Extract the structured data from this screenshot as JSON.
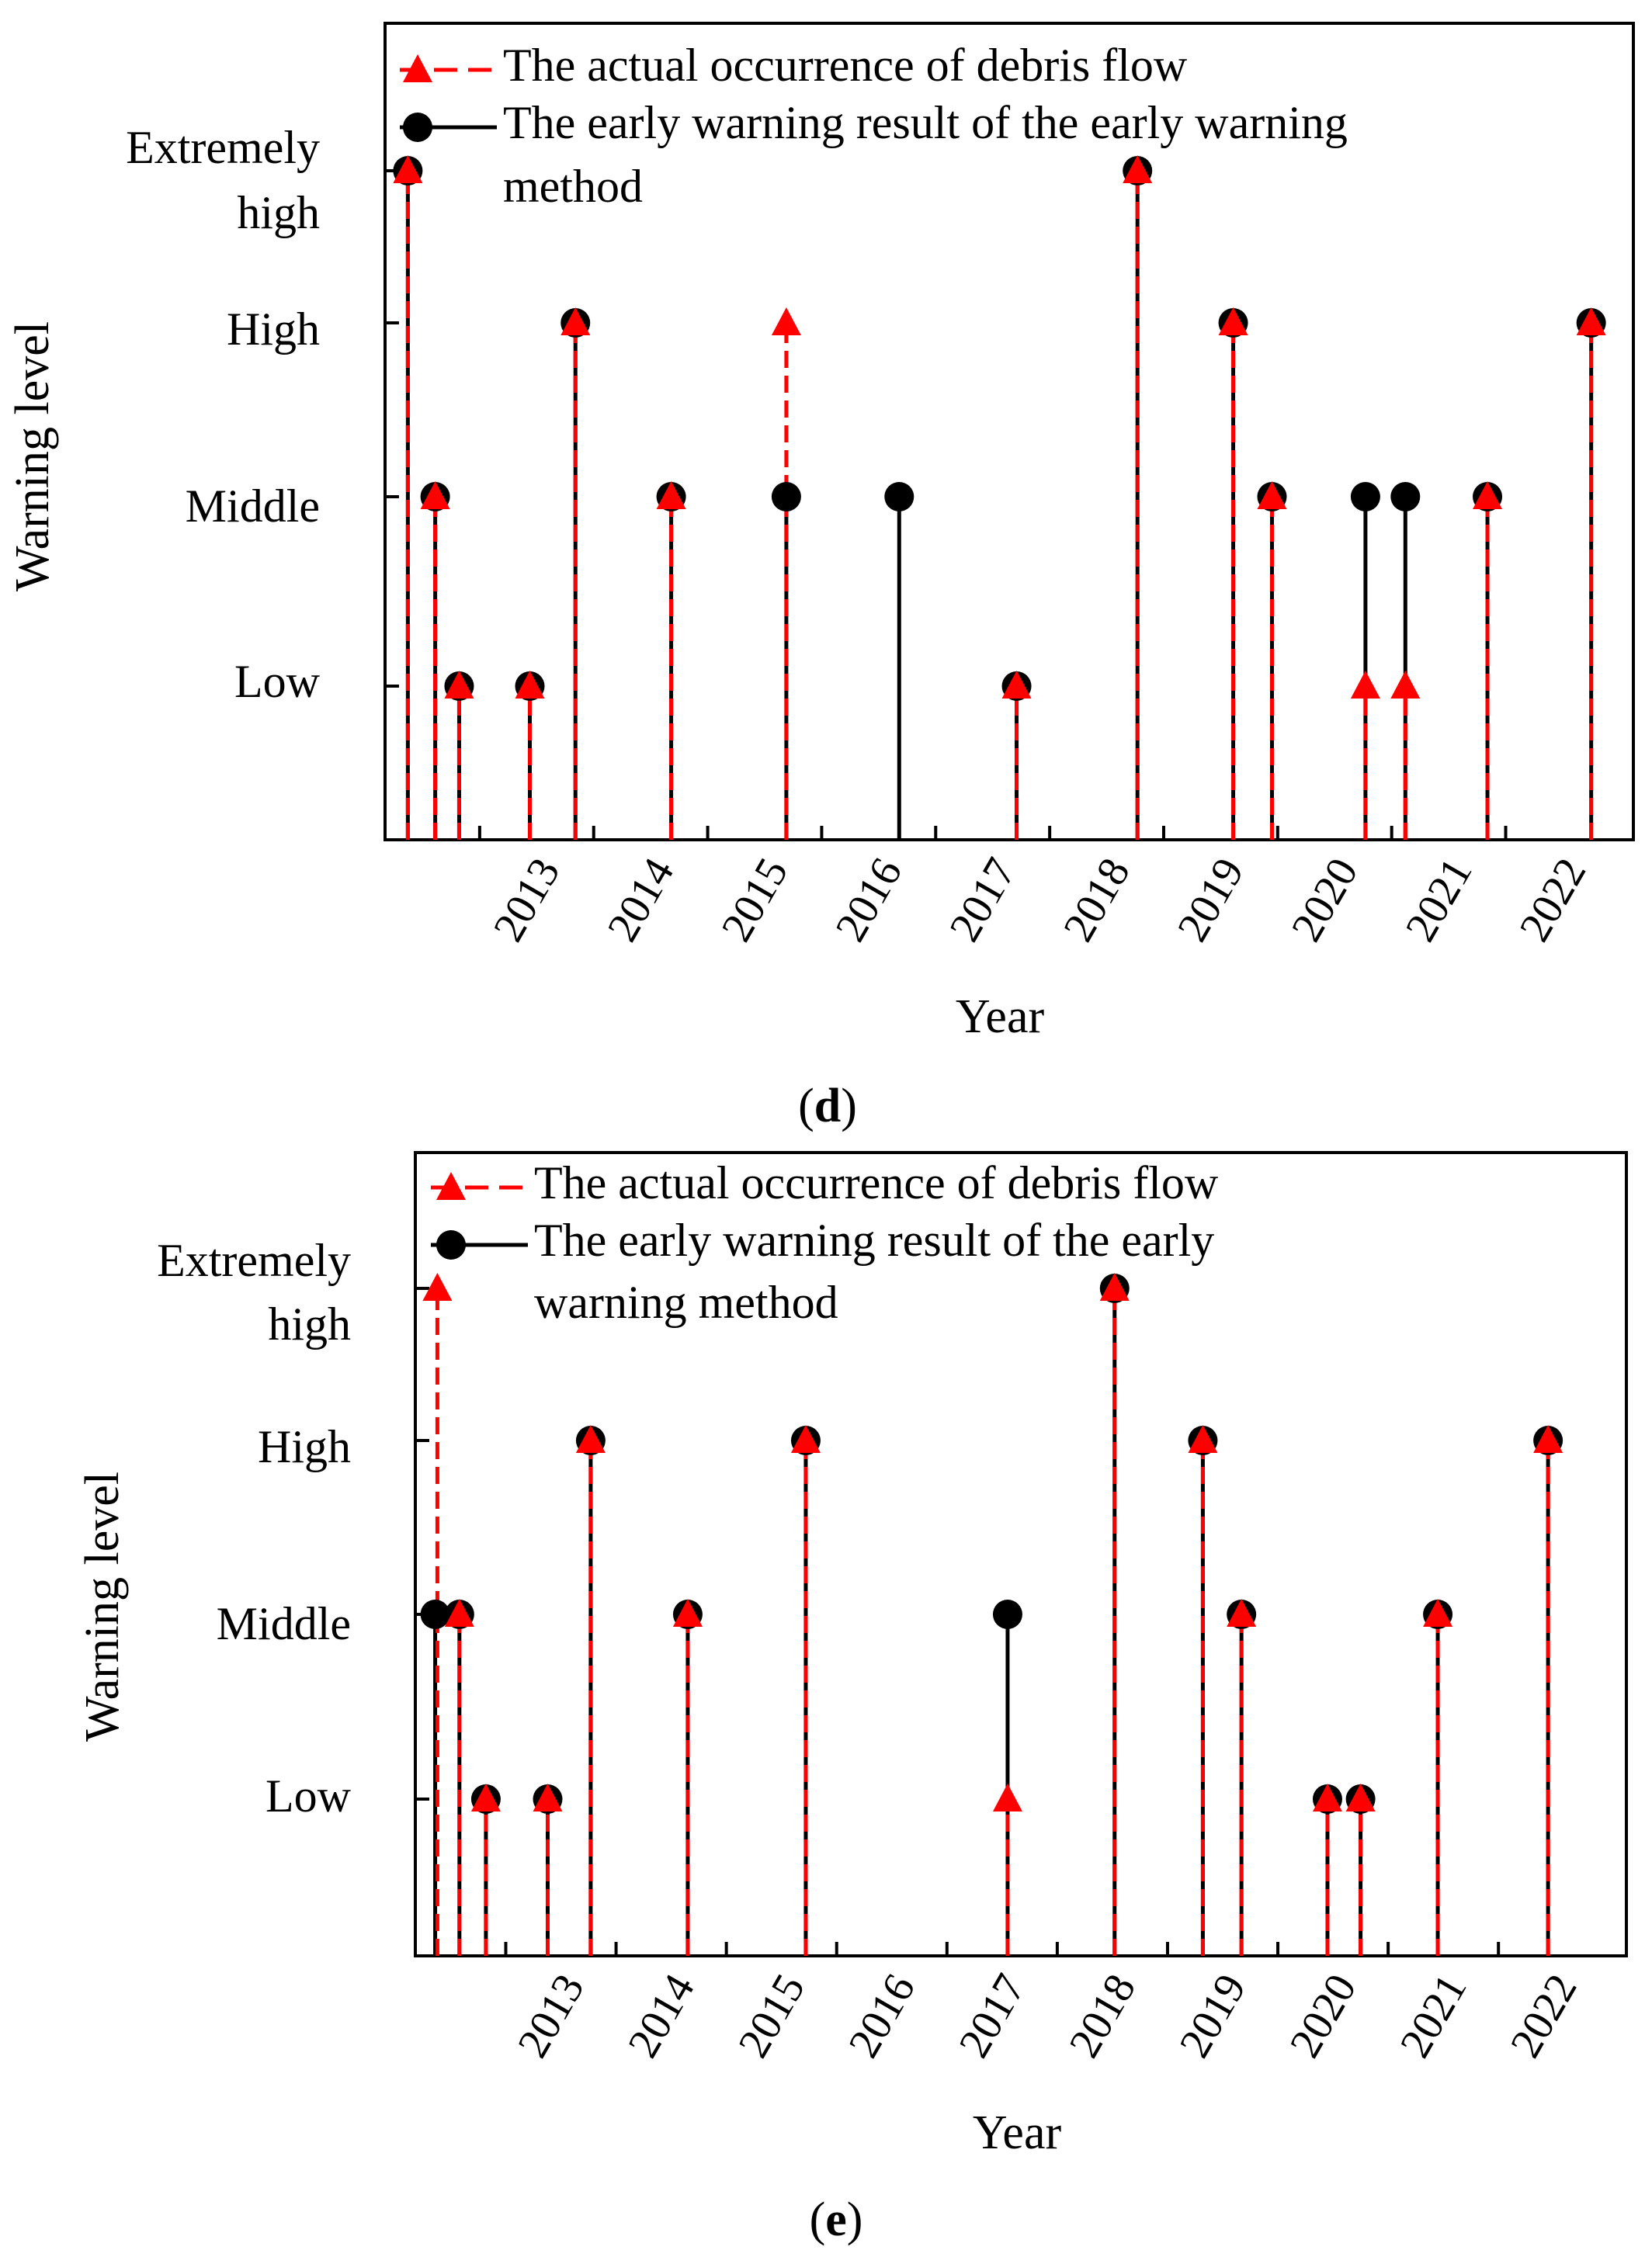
{
  "chart_data": [
    {
      "type": "stem",
      "panel_label": "d",
      "xlabel": "Year",
      "ylabel": "Warning level",
      "levels": [
        "Low",
        "Middle",
        "High",
        "Extremely high"
      ],
      "level_labels": [
        [
          "Low"
        ],
        [
          "Middle"
        ],
        [
          "High"
        ],
        [
          "Extremely",
          "high"
        ]
      ],
      "x_ticks": [
        "2013",
        "2014",
        "2015",
        "2016",
        "2017",
        "2018",
        "2019",
        "2020",
        "2021",
        "2022"
      ],
      "xlim": [
        2012.17,
        2023.12
      ],
      "legend": {
        "placement": "top-left",
        "entries": [
          {
            "series": "actual",
            "lines": [
              "The actual occurrence of debris flow"
            ]
          },
          {
            "series": "warning",
            "lines": [
              "The early warning result of the early warning",
              "method"
            ]
          }
        ]
      },
      "series": [
        {
          "name": "The actual occurrence of debris flow",
          "key": "actual",
          "color": "#ff0000",
          "marker": "triangle",
          "line": "dashed",
          "x": [
            2012.37,
            2012.61,
            2012.82,
            2013.44,
            2013.84,
            2014.68,
            2015.69,
            2017.71,
            2018.77,
            2019.61,
            2019.95,
            2020.77,
            2021.12,
            2021.84,
            2022.75
          ],
          "y": [
            4,
            2,
            1,
            1,
            3,
            2,
            3,
            1,
            4,
            3,
            2,
            1,
            1,
            2,
            3
          ]
        },
        {
          "name": "The early warning result of the early warning method",
          "key": "warning",
          "color": "#000000",
          "marker": "circle",
          "line": "solid",
          "x": [
            2012.37,
            2012.61,
            2012.82,
            2013.44,
            2013.84,
            2014.68,
            2015.69,
            2016.68,
            2017.71,
            2018.77,
            2019.61,
            2019.95,
            2020.77,
            2021.12,
            2021.84,
            2022.75
          ],
          "y": [
            4,
            2,
            1,
            1,
            3,
            2,
            2,
            2,
            1,
            4,
            3,
            2,
            2,
            2,
            2,
            3
          ]
        }
      ]
    },
    {
      "type": "stem",
      "panel_label": "e",
      "xlabel": "Year",
      "ylabel": "Warning level",
      "levels": [
        "Low",
        "Middle",
        "High",
        "Extremely high"
      ],
      "level_labels": [
        [
          "Low"
        ],
        [
          "Middle"
        ],
        [
          "High"
        ],
        [
          "Extremely",
          "high"
        ]
      ],
      "x_ticks": [
        "2013",
        "2014",
        "2015",
        "2016",
        "2017",
        "2018",
        "2019",
        "2020",
        "2021",
        "2022"
      ],
      "xlim": [
        2012.18,
        2023.16
      ],
      "legend": {
        "placement": "top-left",
        "entries": [
          {
            "series": "actual",
            "lines": [
              "The actual occurrence of debris flow"
            ]
          },
          {
            "series": "warning",
            "lines": [
              "The early warning result of the early",
              "warning method"
            ]
          }
        ]
      },
      "series": [
        {
          "name": "The actual occurrence of debris flow",
          "key": "actual",
          "color": "#ff0000",
          "marker": "triangle",
          "line": "dashed",
          "x": [
            2012.38,
            2012.58,
            2012.82,
            2013.38,
            2013.77,
            2014.65,
            2015.72,
            2017.55,
            2018.52,
            2019.32,
            2019.67,
            2020.45,
            2020.75,
            2021.45,
            2022.45
          ],
          "y": [
            4,
            2,
            1,
            1,
            3,
            2,
            3,
            1,
            4,
            3,
            2,
            1,
            1,
            2,
            3
          ]
        },
        {
          "name": "The early warning result of the early warning method",
          "key": "warning",
          "color": "#000000",
          "marker": "circle",
          "line": "solid",
          "x": [
            2012.36,
            2012.58,
            2012.82,
            2013.38,
            2013.77,
            2014.65,
            2015.72,
            2017.55,
            2018.52,
            2019.32,
            2019.67,
            2020.45,
            2020.75,
            2021.45,
            2022.45
          ],
          "y": [
            2,
            2,
            1,
            1,
            3,
            2,
            3,
            2,
            4,
            3,
            2,
            1,
            1,
            2,
            3
          ]
        }
      ]
    }
  ]
}
